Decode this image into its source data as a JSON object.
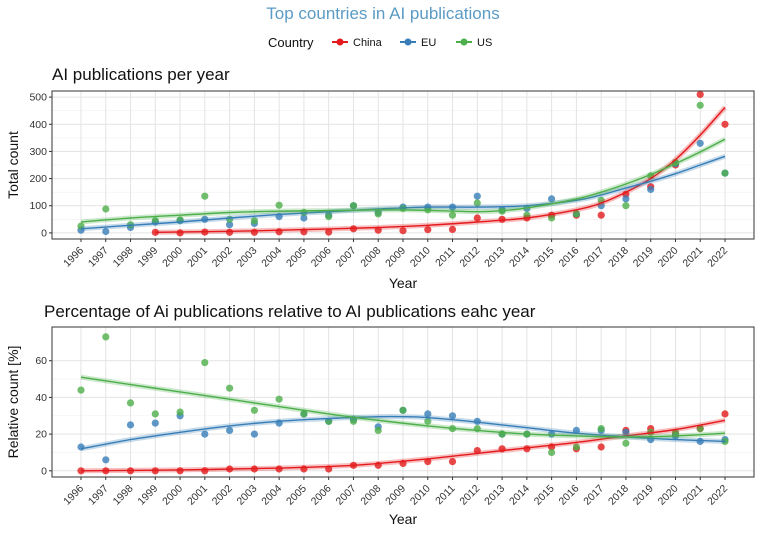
{
  "main_title": "Top countries in AI publications",
  "legend": {
    "title": "Country",
    "entries": [
      {
        "name": "China",
        "color": "#e41a1c"
      },
      {
        "name": "EU",
        "color": "#377eb8"
      },
      {
        "name": "US",
        "color": "#4daf4a"
      }
    ]
  },
  "chart_data": [
    {
      "type": "scatter",
      "title": "AI publications per year",
      "xlabel": "Year",
      "ylabel": "Total count",
      "x": [
        1996,
        1997,
        1998,
        1999,
        2000,
        2001,
        2002,
        2003,
        2004,
        2005,
        2006,
        2007,
        2008,
        2009,
        2010,
        2011,
        2012,
        2013,
        2014,
        2015,
        2016,
        2017,
        2018,
        2019,
        2020,
        2021,
        2022
      ],
      "xlim": [
        1996,
        2022
      ],
      "ylim": [
        0,
        500
      ],
      "yticks": [
        0,
        100,
        200,
        300,
        400,
        500
      ],
      "grid": true,
      "smooth": true,
      "series": [
        {
          "name": "China",
          "color": "#e41a1c",
          "points": [
            [
              1999,
              2
            ],
            [
              2000,
              0
            ],
            [
              2001,
              3
            ],
            [
              2002,
              2
            ],
            [
              2003,
              2
            ],
            [
              2004,
              4
            ],
            [
              2005,
              4
            ],
            [
              2006,
              3
            ],
            [
              2007,
              15
            ],
            [
              2008,
              10
            ],
            [
              2009,
              8
            ],
            [
              2010,
              12
            ],
            [
              2011,
              13
            ],
            [
              2012,
              55
            ],
            [
              2013,
              50
            ],
            [
              2014,
              55
            ],
            [
              2015,
              65
            ],
            [
              2016,
              65
            ],
            [
              2017,
              65
            ],
            [
              2018,
              142
            ],
            [
              2019,
              170
            ],
            [
              2020,
              250
            ],
            [
              2021,
              510
            ],
            [
              2022,
              400
            ]
          ],
          "trend": [
            [
              1999,
              2
            ],
            [
              2002,
              6
            ],
            [
              2005,
              12
            ],
            [
              2008,
              20
            ],
            [
              2010,
              28
            ],
            [
              2012,
              40
            ],
            [
              2014,
              55
            ],
            [
              2016,
              85
            ],
            [
              2017,
              110
            ],
            [
              2018,
              150
            ],
            [
              2019,
              200
            ],
            [
              2020,
              270
            ],
            [
              2021,
              360
            ],
            [
              2022,
              462
            ]
          ]
        },
        {
          "name": "EU",
          "color": "#377eb8",
          "points": [
            [
              1996,
              10
            ],
            [
              1997,
              5
            ],
            [
              1998,
              20
            ],
            [
              1999,
              40
            ],
            [
              2000,
              45
            ],
            [
              2001,
              50
            ],
            [
              2002,
              30
            ],
            [
              2003,
              35
            ],
            [
              2004,
              60
            ],
            [
              2005,
              55
            ],
            [
              2006,
              65
            ],
            [
              2007,
              100
            ],
            [
              2008,
              75
            ],
            [
              2009,
              95
            ],
            [
              2010,
              95
            ],
            [
              2011,
              95
            ],
            [
              2012,
              135
            ],
            [
              2013,
              85
            ],
            [
              2014,
              90
            ],
            [
              2015,
              125
            ],
            [
              2016,
              70
            ],
            [
              2017,
              100
            ],
            [
              2018,
              125
            ],
            [
              2019,
              160
            ],
            [
              2020,
              255
            ],
            [
              2021,
              330
            ],
            [
              2022,
              220
            ]
          ],
          "trend": [
            [
              1996,
              15
            ],
            [
              1998,
              28
            ],
            [
              2000,
              40
            ],
            [
              2002,
              55
            ],
            [
              2004,
              68
            ],
            [
              2006,
              78
            ],
            [
              2008,
              88
            ],
            [
              2010,
              95
            ],
            [
              2012,
              95
            ],
            [
              2014,
              100
            ],
            [
              2016,
              120
            ],
            [
              2017,
              140
            ],
            [
              2018,
              165
            ],
            [
              2019,
              190
            ],
            [
              2020,
              218
            ],
            [
              2021,
              250
            ],
            [
              2022,
              282
            ]
          ]
        },
        {
          "name": "US",
          "color": "#4daf4a",
          "points": [
            [
              1996,
              25
            ],
            [
              1997,
              88
            ],
            [
              1998,
              30
            ],
            [
              1999,
              45
            ],
            [
              2000,
              48
            ],
            [
              2001,
              135
            ],
            [
              2002,
              50
            ],
            [
              2003,
              45
            ],
            [
              2004,
              102
            ],
            [
              2005,
              75
            ],
            [
              2006,
              60
            ],
            [
              2007,
              100
            ],
            [
              2008,
              70
            ],
            [
              2009,
              90
            ],
            [
              2010,
              85
            ],
            [
              2011,
              65
            ],
            [
              2012,
              110
            ],
            [
              2013,
              80
            ],
            [
              2014,
              65
            ],
            [
              2015,
              55
            ],
            [
              2016,
              70
            ],
            [
              2017,
              120
            ],
            [
              2018,
              100
            ],
            [
              2019,
              210
            ],
            [
              2020,
              260
            ],
            [
              2021,
              470
            ],
            [
              2022,
              220
            ]
          ],
          "trend": [
            [
              1996,
              40
            ],
            [
              1998,
              55
            ],
            [
              2000,
              65
            ],
            [
              2002,
              75
            ],
            [
              2004,
              80
            ],
            [
              2006,
              82
            ],
            [
              2008,
              85
            ],
            [
              2010,
              83
            ],
            [
              2012,
              78
            ],
            [
              2013,
              82
            ],
            [
              2014,
              92
            ],
            [
              2016,
              125
            ],
            [
              2017,
              150
            ],
            [
              2018,
              180
            ],
            [
              2019,
              215
            ],
            [
              2020,
              255
            ],
            [
              2021,
              298
            ],
            [
              2022,
              345
            ]
          ]
        }
      ]
    },
    {
      "type": "scatter",
      "title": "Percentage of Ai publications relative to AI publications eahc year",
      "xlabel": "Year",
      "ylabel": "Relative count [%]",
      "x": [
        1996,
        1997,
        1998,
        1999,
        2000,
        2001,
        2002,
        2003,
        2004,
        2005,
        2006,
        2007,
        2008,
        2009,
        2010,
        2011,
        2012,
        2013,
        2014,
        2015,
        2016,
        2017,
        2018,
        2019,
        2020,
        2021,
        2022
      ],
      "xlim": [
        1996,
        2022
      ],
      "ylim": [
        0,
        75
      ],
      "yticks": [
        0,
        20,
        40,
        60
      ],
      "grid": true,
      "smooth": true,
      "series": [
        {
          "name": "China",
          "color": "#e41a1c",
          "points": [
            [
              1996,
              0
            ],
            [
              1997,
              0
            ],
            [
              1998,
              0
            ],
            [
              1999,
              0
            ],
            [
              2000,
              0
            ],
            [
              2001,
              0
            ],
            [
              2002,
              1
            ],
            [
              2003,
              1
            ],
            [
              2004,
              1
            ],
            [
              2005,
              1
            ],
            [
              2006,
              1
            ],
            [
              2007,
              3
            ],
            [
              2008,
              3
            ],
            [
              2009,
              4
            ],
            [
              2010,
              5
            ],
            [
              2011,
              5
            ],
            [
              2012,
              11
            ],
            [
              2013,
              12
            ],
            [
              2014,
              12
            ],
            [
              2015,
              13
            ],
            [
              2016,
              12
            ],
            [
              2017,
              13
            ],
            [
              2018,
              22
            ],
            [
              2019,
              23
            ],
            [
              2020,
              20
            ],
            [
              2021,
              23
            ],
            [
              2022,
              31
            ]
          ],
          "trend": [
            [
              1996,
              0
            ],
            [
              2000,
              0.5
            ],
            [
              2004,
              1.5
            ],
            [
              2007,
              3
            ],
            [
              2010,
              6.5
            ],
            [
              2012,
              9.5
            ],
            [
              2014,
              12.5
            ],
            [
              2016,
              15.5
            ],
            [
              2018,
              19
            ],
            [
              2020,
              22.5
            ],
            [
              2022,
              27.5
            ]
          ]
        },
        {
          "name": "EU",
          "color": "#377eb8",
          "points": [
            [
              1996,
              13
            ],
            [
              1997,
              6
            ],
            [
              1998,
              25
            ],
            [
              1999,
              26
            ],
            [
              2000,
              30
            ],
            [
              2001,
              20
            ],
            [
              2002,
              22
            ],
            [
              2003,
              20
            ],
            [
              2004,
              26
            ],
            [
              2005,
              31
            ],
            [
              2006,
              27
            ],
            [
              2007,
              28
            ],
            [
              2008,
              24
            ],
            [
              2009,
              33
            ],
            [
              2010,
              31
            ],
            [
              2011,
              30
            ],
            [
              2012,
              27
            ],
            [
              2013,
              20
            ],
            [
              2014,
              20
            ],
            [
              2015,
              20
            ],
            [
              2016,
              22
            ],
            [
              2017,
              22
            ],
            [
              2018,
              21
            ],
            [
              2019,
              17
            ],
            [
              2020,
              19
            ],
            [
              2021,
              16
            ],
            [
              2022,
              17
            ]
          ],
          "trend": [
            [
              1996,
              12
            ],
            [
              1998,
              17
            ],
            [
              2000,
              21
            ],
            [
              2002,
              24.5
            ],
            [
              2004,
              27
            ],
            [
              2006,
              28.5
            ],
            [
              2008,
              29.5
            ],
            [
              2009,
              29.5
            ],
            [
              2010,
              29
            ],
            [
              2012,
              26.5
            ],
            [
              2014,
              23.5
            ],
            [
              2016,
              20.5
            ],
            [
              2018,
              18.5
            ],
            [
              2020,
              17
            ],
            [
              2022,
              16
            ]
          ]
        },
        {
          "name": "US",
          "color": "#4daf4a",
          "points": [
            [
              1996,
              44
            ],
            [
              1997,
              73
            ],
            [
              1998,
              37
            ],
            [
              1999,
              31
            ],
            [
              2000,
              32
            ],
            [
              2001,
              59
            ],
            [
              2002,
              45
            ],
            [
              2003,
              33
            ],
            [
              2004,
              39
            ],
            [
              2005,
              31
            ],
            [
              2006,
              27
            ],
            [
              2007,
              27
            ],
            [
              2008,
              22
            ],
            [
              2009,
              33
            ],
            [
              2010,
              27
            ],
            [
              2011,
              23
            ],
            [
              2012,
              23
            ],
            [
              2013,
              20
            ],
            [
              2014,
              20
            ],
            [
              2015,
              10
            ],
            [
              2016,
              13
            ],
            [
              2017,
              23
            ],
            [
              2018,
              15
            ],
            [
              2019,
              21
            ],
            [
              2020,
              21
            ],
            [
              2021,
              23
            ],
            [
              2022,
              16
            ]
          ],
          "trend": [
            [
              1996,
              51
            ],
            [
              1998,
              47
            ],
            [
              2000,
              43
            ],
            [
              2002,
              39
            ],
            [
              2004,
              35
            ],
            [
              2006,
              31
            ],
            [
              2008,
              27.5
            ],
            [
              2010,
              24.5
            ],
            [
              2012,
              22
            ],
            [
              2014,
              20
            ],
            [
              2016,
              19
            ],
            [
              2018,
              18.5
            ],
            [
              2020,
              19
            ],
            [
              2022,
              20.5
            ]
          ]
        }
      ]
    }
  ]
}
